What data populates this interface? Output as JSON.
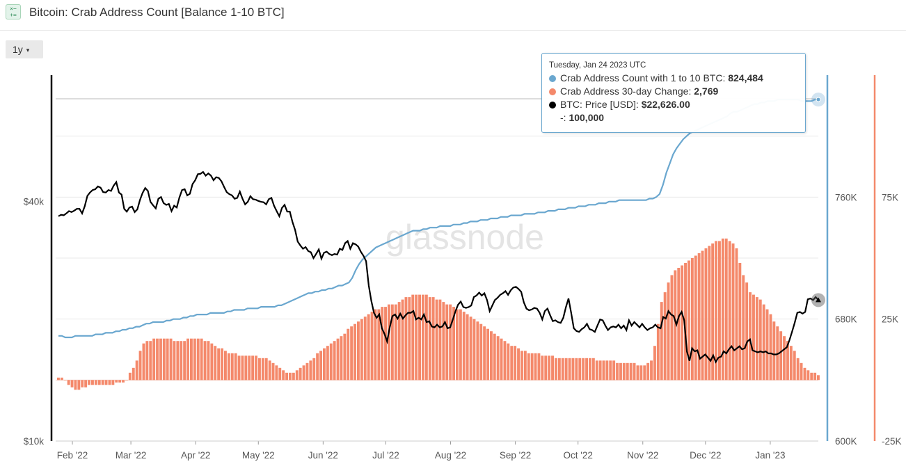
{
  "header": {
    "icon_name": "chart-formula-icon",
    "title": "Bitcoin: Crab Address Count [Balance 1-10 BTC]"
  },
  "toolbar": {
    "range_label": "1y",
    "range_caret": "▾"
  },
  "tooltip": {
    "date": "Tuesday, Jan 24 2023 UTC",
    "rows": [
      {
        "label": "Crab Address Count with 1 to 10 BTC:",
        "value": "824,484",
        "color": "#6aa7cf"
      },
      {
        "label": "Crab Address 30-day Change:",
        "value": "2,769",
        "color": "#f4896b"
      },
      {
        "label": "BTC: Price [USD]:",
        "value": "$22,626.00",
        "color": "#000000"
      },
      {
        "label": "-:",
        "value": "100,000",
        "color": ""
      }
    ]
  },
  "watermark": "glassnode",
  "chart_data": {
    "type": "line",
    "x_ticks": [
      "Feb '22",
      "Mar '22",
      "Apr '22",
      "May '22",
      "Jun '22",
      "Jul '22",
      "Aug '22",
      "Sep '22",
      "Oct '22",
      "Nov '22",
      "Dec '22",
      "Jan '23"
    ],
    "x_range": [
      "2022-01-24",
      "2023-01-24"
    ],
    "axes": {
      "price": {
        "ticks": [
          "$10k",
          "$40k"
        ],
        "scale": "log",
        "range": [
          10000,
          83000
        ],
        "color": "#000000",
        "side": "left"
      },
      "count": {
        "ticks": [
          "600K",
          "680K",
          "760K"
        ],
        "range": [
          600000,
          840000
        ],
        "color": "#6aa7cf",
        "side": "right"
      },
      "change": {
        "ticks": [
          "-25K",
          "25K",
          "75K"
        ],
        "range": [
          -25000,
          125000
        ],
        "color": "#f4896b",
        "side": "right"
      }
    },
    "grid": true,
    "series": [
      {
        "name": "Crab Address Count with 1 to 10 BTC",
        "axis": "count",
        "style": "line",
        "color": "#6aa7cf",
        "values": [
          669,
          669,
          668,
          668,
          668,
          669,
          669,
          669,
          669,
          669,
          669,
          670,
          670,
          670,
          671,
          671,
          671,
          672,
          672,
          673,
          673,
          674,
          674,
          675,
          675,
          676,
          677,
          677,
          678,
          678,
          678,
          678,
          679,
          679,
          680,
          680,
          680,
          681,
          681,
          682,
          682,
          683,
          683,
          683,
          683,
          684,
          684,
          684,
          684,
          684,
          685,
          685,
          686,
          686,
          686,
          686,
          687,
          687,
          687,
          687,
          688,
          688,
          688,
          688,
          688,
          689,
          689,
          690,
          691,
          692,
          693,
          694,
          695,
          696,
          697,
          697,
          698,
          698,
          699,
          699,
          700,
          700,
          701,
          702,
          702,
          703,
          704,
          707,
          712,
          716,
          719,
          721,
          723,
          725,
          727,
          728,
          729,
          730,
          731,
          732,
          733,
          734,
          735,
          736,
          737,
          738,
          738,
          738,
          739,
          739,
          740,
          740,
          740,
          741,
          741,
          741,
          741,
          742,
          742,
          742,
          743,
          743,
          744,
          744,
          744,
          745,
          745,
          745,
          746,
          746,
          746,
          747,
          747,
          747,
          748,
          748,
          748,
          748,
          749,
          749,
          749,
          749,
          750,
          750,
          750,
          751,
          751,
          751,
          752,
          752,
          752,
          753,
          753,
          753,
          754,
          754,
          754,
          755,
          755,
          755,
          756,
          756,
          756,
          757,
          757,
          757,
          758,
          758,
          758,
          758,
          758,
          758,
          758,
          758,
          758,
          759,
          759,
          760,
          762,
          768,
          776,
          782,
          788,
          792,
          795,
          798,
          800,
          802,
          803,
          804,
          805,
          806,
          807,
          808,
          809,
          810,
          811,
          812,
          813,
          815,
          816,
          816,
          817,
          818,
          819,
          820,
          821,
          821,
          822,
          822,
          823,
          823,
          823,
          824,
          824,
          824,
          824,
          824,
          824,
          824,
          823,
          823,
          823,
          823,
          824,
          824
        ]
      },
      {
        "name": "Crab Address 30-day Change",
        "axis": "change",
        "style": "bar",
        "color": "#f4896b",
        "values": [
          1,
          1,
          0,
          -2,
          -3,
          -4,
          -4,
          -3,
          -3,
          -2,
          -2,
          -2,
          -2,
          -2,
          -2,
          -2,
          -2,
          -1,
          -1,
          -1,
          0,
          3,
          5,
          8,
          12,
          15,
          16,
          16,
          17,
          17,
          17,
          17,
          17,
          17,
          16,
          16,
          16,
          16,
          17,
          17,
          17,
          17,
          17,
          16,
          16,
          15,
          14,
          13,
          13,
          12,
          11,
          11,
          11,
          10,
          10,
          10,
          10,
          10,
          10,
          9,
          9,
          9,
          8,
          7,
          6,
          5,
          4,
          3,
          3,
          3,
          4,
          5,
          6,
          7,
          8,
          9,
          11,
          12,
          13,
          14,
          15,
          16,
          17,
          18,
          19,
          21,
          22,
          23,
          24,
          25,
          26,
          27,
          28,
          29,
          29,
          30,
          30,
          31,
          31,
          31,
          32,
          33,
          34,
          34,
          35,
          35,
          35,
          35,
          35,
          34,
          34,
          33,
          33,
          32,
          31,
          31,
          30,
          29,
          29,
          28,
          27,
          26,
          25,
          24,
          23,
          22,
          21,
          20,
          19,
          18,
          17,
          16,
          15,
          14,
          14,
          13,
          12,
          12,
          11,
          11,
          11,
          11,
          10,
          10,
          10,
          10,
          9,
          9,
          9,
          9,
          9,
          9,
          9,
          9,
          9,
          9,
          9,
          9,
          8,
          8,
          8,
          8,
          8,
          8,
          7,
          7,
          7,
          7,
          7,
          7,
          6,
          6,
          6,
          7,
          8,
          14,
          23,
          32,
          36,
          40,
          43,
          45,
          46,
          47,
          48,
          49,
          50,
          51,
          52,
          53,
          54,
          55,
          56,
          57,
          57,
          58,
          58,
          57,
          56,
          54,
          48,
          43,
          40,
          36,
          35,
          34,
          33,
          31,
          29,
          27,
          24,
          22,
          20,
          18,
          16,
          14,
          12,
          9,
          7,
          5,
          4,
          3,
          3,
          2
        ]
      },
      {
        "name": "BTC: Price [USD]",
        "axis": "price",
        "style": "line",
        "color": "#000000",
        "values": [
          36700,
          37000,
          36900,
          37300,
          37800,
          37600,
          37900,
          38300,
          38300,
          37300,
          38900,
          41300,
          42100,
          42700,
          42900,
          43600,
          43300,
          42200,
          42100,
          42700,
          42500,
          43800,
          44700,
          42100,
          41600,
          38300,
          37700,
          38600,
          38800,
          37600,
          38200,
          40300,
          42000,
          43200,
          42500,
          39900,
          39100,
          38400,
          40600,
          41000,
          39600,
          39200,
          39400,
          37800,
          39000,
          38600,
          40900,
          42700,
          42900,
          41400,
          41800,
          44200,
          45200,
          46800,
          46900,
          47400,
          46400,
          47000,
          46400,
          45200,
          46000,
          45800,
          44900,
          43500,
          42200,
          41700,
          41400,
          40600,
          40800,
          42300,
          40600,
          39300,
          39900,
          41200,
          40500,
          40400,
          40100,
          39900,
          39800,
          39300,
          40500,
          40800,
          39000,
          37800,
          36700,
          38500,
          39200,
          37700,
          37700,
          35500,
          33900,
          31700,
          31000,
          30400,
          30700,
          30000,
          29800,
          28800,
          29500,
          30300,
          28700,
          29700,
          29900,
          29500,
          29300,
          29500,
          29400,
          30400,
          30200,
          31400,
          31800,
          30400,
          31400,
          31200,
          30800,
          29900,
          29200,
          28300,
          24600,
          22500,
          21000,
          20400,
          20800,
          19200,
          18600,
          17800,
          19300,
          20600,
          20800,
          20300,
          20900,
          20300,
          20700,
          21000,
          21000,
          21200,
          20200,
          20400,
          20200,
          20800,
          19900,
          20000,
          19400,
          19300,
          19600,
          19300,
          19400,
          19900,
          19200,
          19300,
          20200,
          21200,
          22000,
          22400,
          21700,
          21600,
          21700,
          21900,
          23000,
          23200,
          23600,
          23200,
          23500,
          22600,
          21200,
          21900,
          22600,
          22900,
          23300,
          23500,
          23800,
          23300,
          23900,
          24300,
          24400,
          24100,
          23700,
          22300,
          21500,
          21300,
          21400,
          21600,
          21500,
          21000,
          20200,
          21200,
          21500,
          20700,
          20000,
          20100,
          19900,
          19800,
          20400,
          21700,
          22800,
          21000,
          19200,
          18900,
          18800,
          19100,
          19300,
          19700,
          19100,
          19000,
          18800,
          19500,
          20200,
          20100,
          19500,
          19000,
          19300,
          19400,
          19300,
          19600,
          19200,
          19500,
          19000,
          20100,
          19500,
          19900,
          19600,
          19300,
          19700,
          19300,
          19000,
          19200,
          19300,
          19600,
          19300,
          19200,
          20500,
          20300,
          21200,
          20800,
          20600,
          19600,
          20600,
          21100,
          20100,
          16800,
          15900,
          17100,
          16800,
          16900,
          16100,
          16300,
          16500,
          16200,
          15900,
          16400,
          15800,
          16200,
          16300,
          16800,
          16600,
          17000,
          17300,
          16900,
          17100,
          17300,
          17000,
          17100,
          17800,
          18000,
          16900,
          16800,
          16700,
          16800,
          16700,
          16800,
          16600,
          16600,
          16500,
          16500,
          16600,
          16800,
          17000,
          17200,
          17900,
          18800,
          19800,
          21000,
          21100,
          20900,
          21100,
          22700,
          22800,
          22600,
          23000,
          22600
        ]
      }
    ]
  }
}
